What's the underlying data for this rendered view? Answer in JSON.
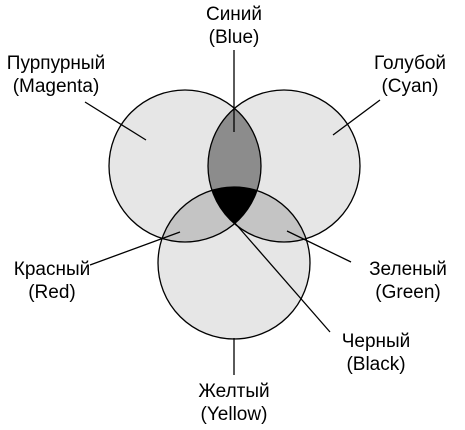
{
  "labels": {
    "blue": {
      "ru": "Синий",
      "en": "(Blue)"
    },
    "magenta": {
      "ru": "Пурпурный",
      "en": "(Magenta)"
    },
    "cyan": {
      "ru": "Голубой",
      "en": "(Cyan)"
    },
    "red": {
      "ru": "Красный",
      "en": "(Red)"
    },
    "green": {
      "ru": "Зеленый",
      "en": "(Green)"
    },
    "black": {
      "ru": "Черный",
      "en": "(Black)"
    },
    "yellow": {
      "ru": "Желтый",
      "en": "(Yellow)"
    }
  },
  "colors": {
    "circle_fill": "#e6e6e6",
    "pair_overlap_light": "#c4c4c4",
    "pair_overlap_dark": "#8c8c8c",
    "center_fill": "#000000",
    "stroke": "#000000"
  }
}
